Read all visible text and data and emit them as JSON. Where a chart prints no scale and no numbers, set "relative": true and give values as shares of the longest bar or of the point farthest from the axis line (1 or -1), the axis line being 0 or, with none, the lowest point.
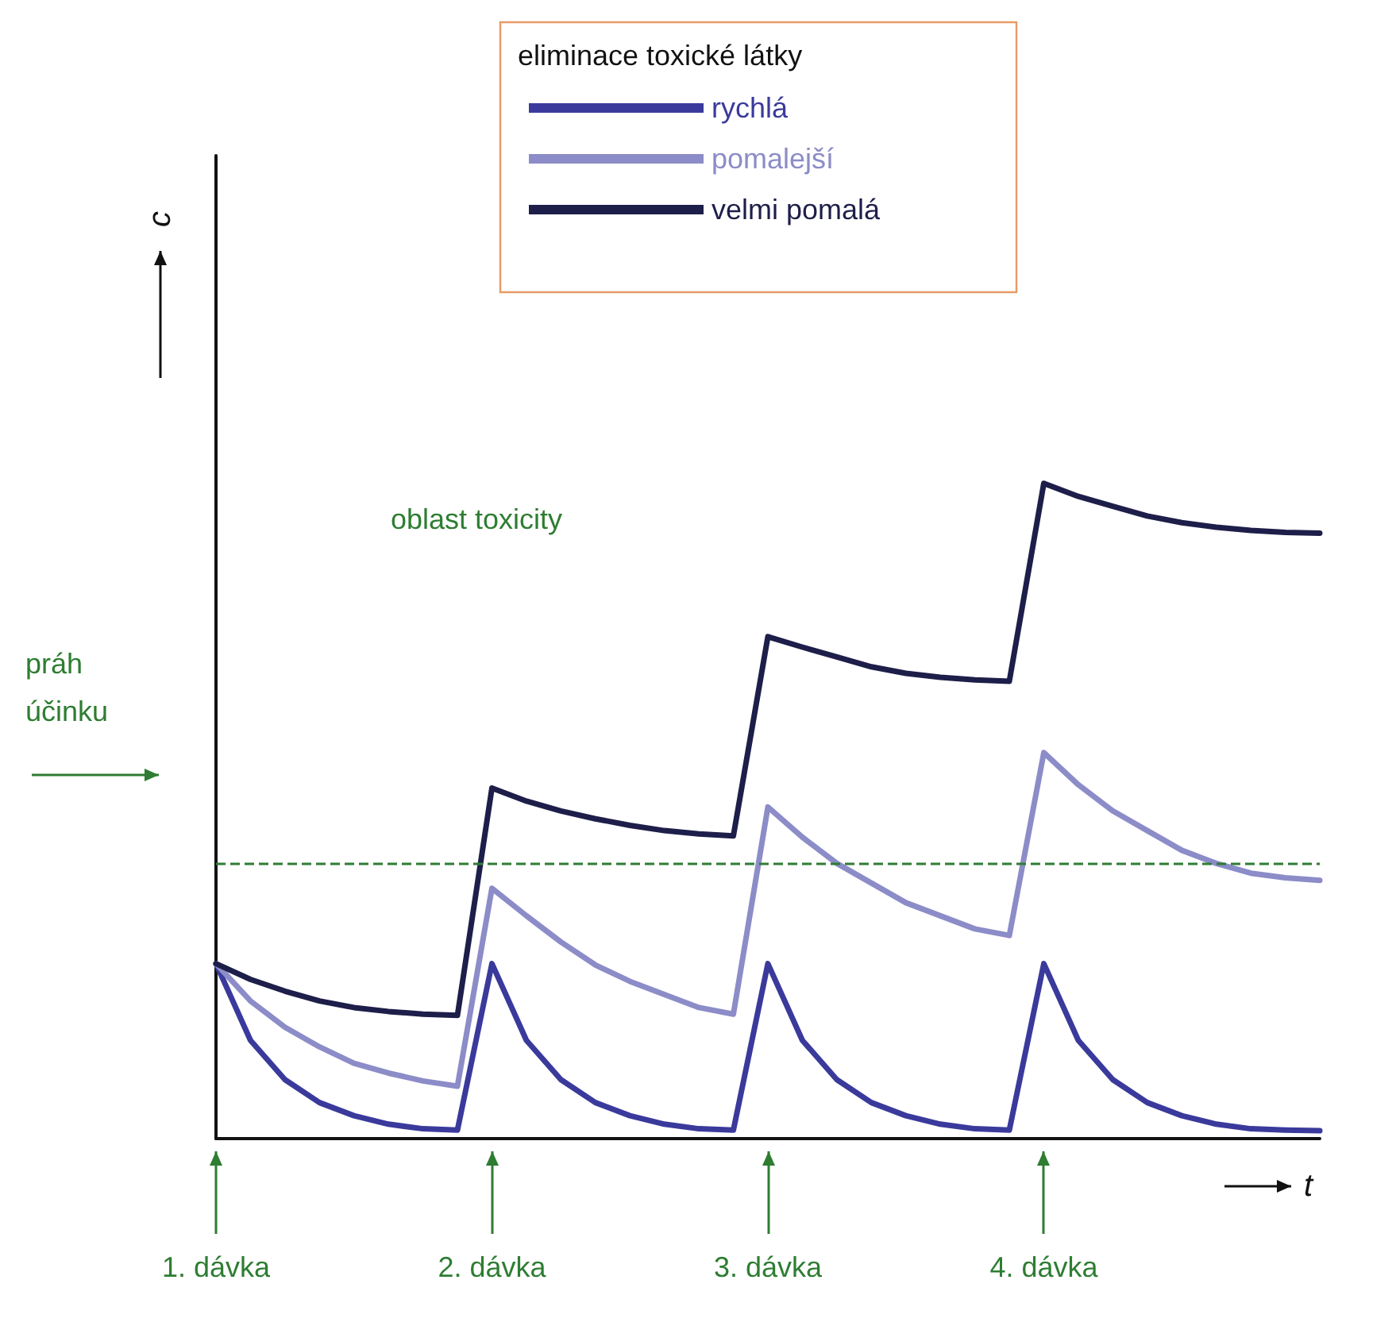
{
  "chart_data": {
    "type": "line",
    "relative": true,
    "xlabel": "t",
    "legend_title": "eliminace toxické látky",
    "legend": "top",
    "line_style": "solid",
    "marker": "none",
    "grid": false,
    "categories": [
      "1. dávka",
      null,
      null,
      null,
      null,
      null,
      null,
      null,
      "2. dávka",
      null,
      null,
      null,
      null,
      null,
      null,
      null,
      "3. dávka",
      null,
      null,
      null,
      null,
      null,
      null,
      null,
      "4. dávka",
      null,
      null,
      null,
      null,
      null,
      null,
      null,
      null
    ],
    "series": [
      {
        "name": "rychlá",
        "color": "#3a3a9c",
        "values": [
          0.267,
          0.15,
          0.09,
          0.055,
          0.035,
          0.022,
          0.015,
          0.013,
          0.267,
          0.15,
          0.09,
          0.055,
          0.035,
          0.022,
          0.015,
          0.013,
          0.267,
          0.15,
          0.09,
          0.055,
          0.035,
          0.022,
          0.015,
          0.013,
          0.267,
          0.15,
          0.09,
          0.055,
          0.035,
          0.022,
          0.015,
          0.013,
          0.012
        ]
      },
      {
        "name": "pomalejší",
        "color": "#8c8cc8",
        "values": [
          0.267,
          0.21,
          0.17,
          0.14,
          0.115,
          0.1,
          0.088,
          0.08,
          0.382,
          0.34,
          0.3,
          0.265,
          0.24,
          0.22,
          0.2,
          0.19,
          0.506,
          0.46,
          0.42,
          0.39,
          0.36,
          0.34,
          0.32,
          0.31,
          0.589,
          0.54,
          0.5,
          0.47,
          0.44,
          0.42,
          0.405,
          0.398,
          0.394
        ]
      },
      {
        "name": "velmi pomalá",
        "color": "#1e1e4a",
        "values": [
          0.267,
          0.243,
          0.225,
          0.21,
          0.2,
          0.194,
          0.19,
          0.188,
          0.535,
          0.515,
          0.5,
          0.488,
          0.478,
          0.47,
          0.465,
          0.462,
          0.766,
          0.75,
          0.735,
          0.72,
          0.71,
          0.704,
          0.7,
          0.698,
          1.0,
          0.98,
          0.965,
          0.95,
          0.94,
          0.933,
          0.928,
          0.925,
          0.924
        ]
      }
    ],
    "ref_lines": [
      {
        "axis": "y",
        "value": 0.422,
        "label": "práh účinku",
        "color": "#2e7d32",
        "line_style": "dashed"
      }
    ],
    "annotations": [
      "oblast toxicity",
      "c"
    ]
  }
}
